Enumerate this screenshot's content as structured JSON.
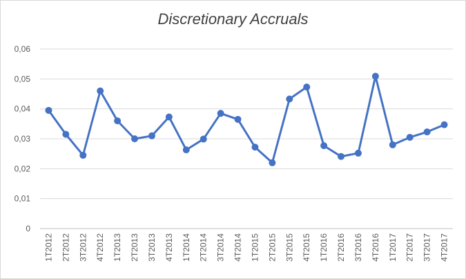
{
  "chart_data": {
    "type": "line",
    "title": "Discretionary Accruals",
    "xlabel": "",
    "ylabel": "",
    "ylim": [
      0,
      0.06
    ],
    "y_ticks": [
      "0",
      "0,01",
      "0,02",
      "0,03",
      "0,04",
      "0,05",
      "0,06"
    ],
    "grid": true,
    "legend": "none",
    "categories": [
      "1T2012",
      "2T2012",
      "3T2012",
      "4T2012",
      "1T2013",
      "2T2013",
      "3T2013",
      "4T2013",
      "1T2014",
      "2T2014",
      "3T2014",
      "4T2014",
      "1T2015",
      "2T2015",
      "3T2015",
      "4T2015",
      "1T2016",
      "2T2016",
      "3T2016",
      "4T2016",
      "1T2017",
      "2T2017",
      "3T2017",
      "4T2017"
    ],
    "series": [
      {
        "color": "#4472c4",
        "values": [
          0.0395,
          0.0315,
          0.0245,
          0.046,
          0.036,
          0.03,
          0.031,
          0.0373,
          0.0263,
          0.0299,
          0.0385,
          0.0365,
          0.0272,
          0.022,
          0.0433,
          0.0473,
          0.0277,
          0.0241,
          0.0252,
          0.0509,
          0.028,
          0.0305,
          0.0323,
          0.0347
        ]
      }
    ]
  }
}
